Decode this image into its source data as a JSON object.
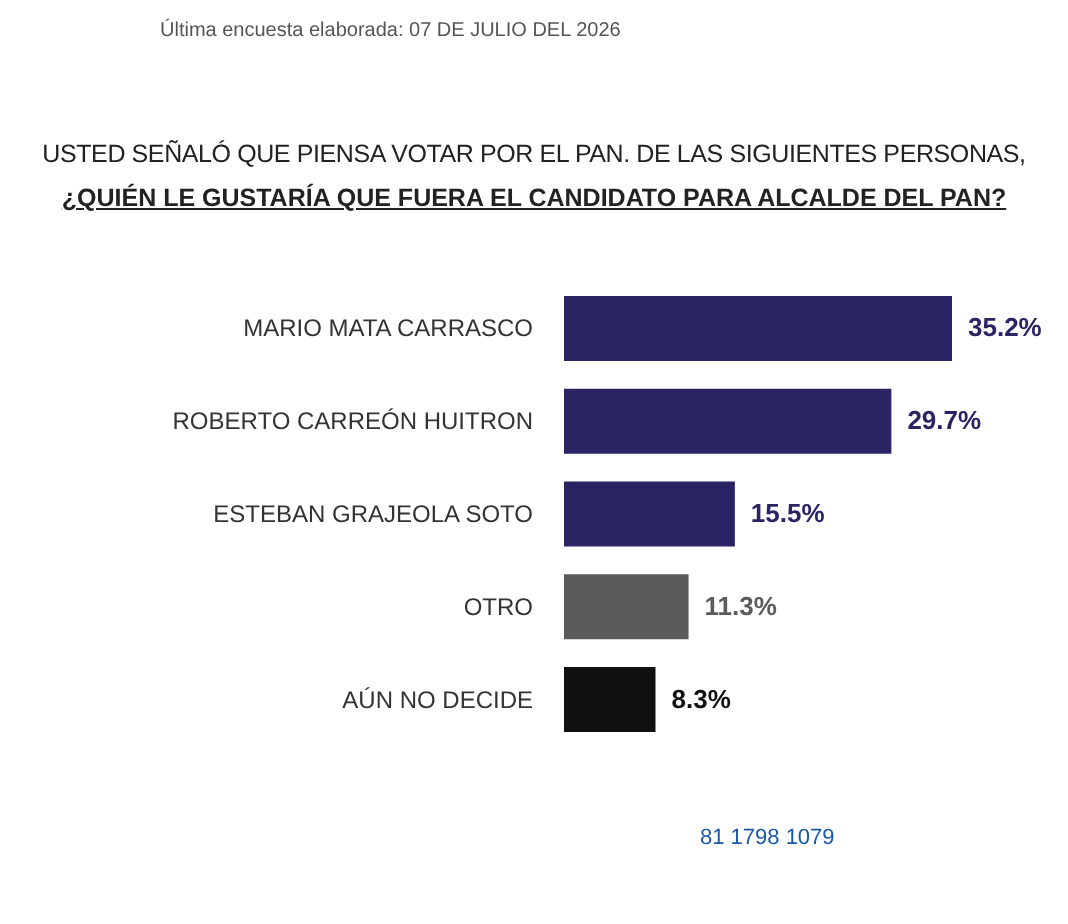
{
  "chart_data": {
    "type": "bar",
    "orientation": "horizontal",
    "title": "USTED SEÑALÓ QUE PIENSA VOTAR POR EL PAN. DE LAS SIGUIENTES PERSONAS,",
    "subtitle": "¿QUIÉN LE GUSTARÍA QUE FUERA EL CANDIDATO PARA ALCALDE DEL PAN?",
    "annotations": [
      "Última encuesta elaborada: 07 DE JULIO DEL 2026",
      "81 1798 1079"
    ],
    "categories": [
      "MARIO MATA CARRASCO",
      "ROBERTO CARREÓN HUITRON",
      "ESTEBAN GRAJEOLA SOTO",
      "OTRO",
      "AÚN NO DECIDE"
    ],
    "values": [
      35.2,
      29.7,
      15.5,
      11.3,
      8.3
    ],
    "colors": [
      "#2b2464",
      "#2b2464",
      "#2b2464",
      "#5b5b5b",
      "#111111"
    ],
    "value_labels": [
      "35.2%",
      "29.7%",
      "15.5%",
      "11.3%",
      "8.3%"
    ]
  }
}
